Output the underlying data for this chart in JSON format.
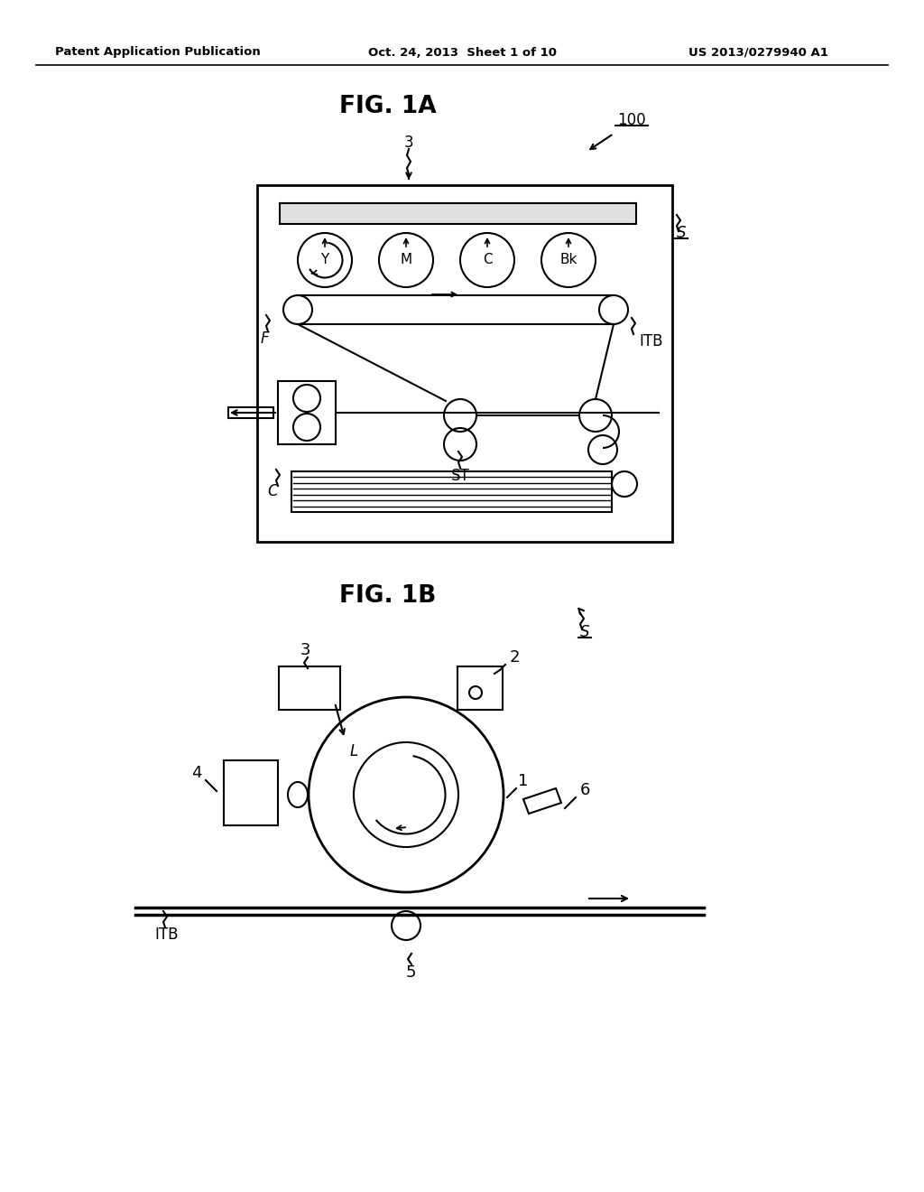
{
  "bg_color": "#ffffff",
  "header_left": "Patent Application Publication",
  "header_mid": "Oct. 24, 2013  Sheet 1 of 10",
  "header_right": "US 2013/0279940 A1",
  "fig1a_title": "FIG. 1A",
  "fig1b_title": "FIG. 1B",
  "line_color": "#000000",
  "text_color": "#000000"
}
